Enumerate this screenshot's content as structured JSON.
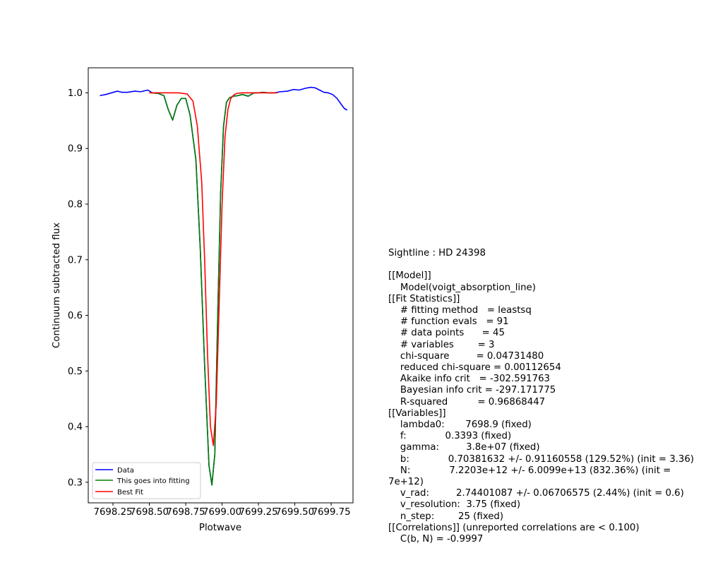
{
  "chart_data": {
    "type": "line",
    "xlabel": "Plotwave",
    "ylabel": "Continuum subtracted flux",
    "xlim": [
      7698.08,
      7699.9
    ],
    "ylim": [
      0.263,
      1.045
    ],
    "xticks": [
      7698.25,
      7698.5,
      7698.75,
      7699.0,
      7699.25,
      7699.5,
      7699.75
    ],
    "xtick_labels": [
      "7698.25",
      "7698.50",
      "7698.75",
      "7699.00",
      "7699.25",
      "7699.50",
      "7699.75"
    ],
    "yticks": [
      0.3,
      0.4,
      0.5,
      0.6,
      0.7,
      0.8,
      0.9,
      1.0
    ],
    "ytick_labels": [
      "0.3",
      "0.4",
      "0.5",
      "0.6",
      "0.7",
      "0.8",
      "0.9",
      "1.0"
    ],
    "grid": false,
    "legend_position": "lower-left",
    "series": [
      {
        "name": "Data",
        "color": "#0000ff",
        "x": [
          7698.16,
          7698.2,
          7698.24,
          7698.28,
          7698.31,
          7698.35,
          7698.4,
          7698.44,
          7698.49,
          7698.52,
          7698.56,
          7698.6,
          7698.63,
          7698.66,
          7698.69,
          7698.72,
          7698.75,
          7698.78,
          7698.82,
          7698.85,
          7698.88,
          7698.91,
          7698.93,
          7698.95,
          7698.97,
          7698.99,
          7699.01,
          7699.03,
          7699.05,
          7699.08,
          7699.11,
          7699.14,
          7699.18,
          7699.22,
          7699.25,
          7699.28,
          7699.32,
          7699.36,
          7699.4,
          7699.45,
          7699.49,
          7699.53,
          7699.57,
          7699.61,
          7699.64,
          7699.67,
          7699.7,
          7699.73,
          7699.76,
          7699.79,
          7699.82,
          7699.84,
          7699.86
        ],
        "y": [
          0.995,
          0.997,
          1.0,
          1.003,
          1.001,
          1.001,
          1.003,
          1.002,
          1.005,
          1.0,
          0.999,
          0.995,
          0.97,
          0.951,
          0.978,
          0.99,
          0.99,
          0.96,
          0.88,
          0.72,
          0.51,
          0.33,
          0.295,
          0.35,
          0.6,
          0.82,
          0.94,
          0.983,
          0.991,
          0.994,
          0.995,
          0.997,
          0.994,
          1.0,
          1.0,
          1.001,
          1.0,
          1.0,
          1.002,
          1.003,
          1.006,
          1.005,
          1.008,
          1.01,
          1.009,
          1.005,
          1.001,
          1.0,
          0.997,
          0.99,
          0.979,
          0.972,
          0.969
        ]
      },
      {
        "name": "This goes into fitting",
        "color": "#008000",
        "x": [
          7698.52,
          7698.56,
          7698.6,
          7698.63,
          7698.66,
          7698.69,
          7698.72,
          7698.75,
          7698.78,
          7698.82,
          7698.85,
          7698.88,
          7698.91,
          7698.93,
          7698.95,
          7698.97,
          7698.99,
          7699.01,
          7699.03,
          7699.05,
          7699.08,
          7699.11,
          7699.14,
          7699.18,
          7699.22,
          7699.25,
          7699.28,
          7699.32,
          7699.36
        ],
        "y": [
          1.0,
          0.999,
          0.995,
          0.97,
          0.951,
          0.978,
          0.99,
          0.99,
          0.96,
          0.88,
          0.72,
          0.51,
          0.33,
          0.295,
          0.35,
          0.6,
          0.82,
          0.94,
          0.983,
          0.991,
          0.994,
          0.995,
          0.997,
          0.994,
          1.0,
          1.0,
          1.001,
          1.0,
          1.0
        ]
      },
      {
        "name": "Best Fit",
        "color": "#ff0000",
        "x": [
          7698.5,
          7698.6,
          7698.7,
          7698.76,
          7698.8,
          7698.83,
          7698.86,
          7698.88,
          7698.9,
          7698.92,
          7698.94,
          7698.96,
          7698.98,
          7699.0,
          7699.02,
          7699.04,
          7699.06,
          7699.08,
          7699.1,
          7699.14,
          7699.2,
          7699.3,
          7699.38
        ],
        "y": [
          1.0,
          1.0,
          1.0,
          0.998,
          0.985,
          0.94,
          0.84,
          0.7,
          0.53,
          0.4,
          0.366,
          0.44,
          0.62,
          0.8,
          0.92,
          0.97,
          0.99,
          0.996,
          0.999,
          1.0,
          1.0,
          1.0,
          1.0
        ]
      }
    ]
  },
  "fit_report": {
    "sightline": "Sightline : HD 24398",
    "model_header": "[[Model]]",
    "model_name": "    Model(voigt_absorption_line)",
    "fit_statistics_header": "[[Fit Statistics]]",
    "fitting_method": "    # fitting method   = leastsq",
    "function_evals": "    # function evals   = 91",
    "data_points": "    # data points      = 45",
    "variables_count": "    # variables        = 3",
    "chi_square": "    chi-square         = 0.04731480",
    "reduced_chi_square": "    reduced chi-square = 0.00112654",
    "akaike": "    Akaike info crit   = -302.591763",
    "bayesian": "    Bayesian info crit = -297.171775",
    "r_squared": "    R-squared          = 0.96868447",
    "variables_header": "[[Variables]]",
    "lambda0": "    lambda0:       7698.9 (fixed)",
    "f": "    f:             0.3393 (fixed)",
    "gamma": "    gamma:         3.8e+07 (fixed)",
    "b": "    b:             0.70381632 +/- 0.91160558 (129.52%) (init = 3.36)",
    "N": "    N:             7.2203e+12 +/- 6.0099e+13 (832.36%) (init = 7e+12)",
    "v_rad": "    v_rad:         2.74401087 +/- 0.06706575 (2.44%) (init = 0.6)",
    "v_resolution": "    v_resolution:  3.75 (fixed)",
    "n_step": "    n_step:        25 (fixed)",
    "correlations_header": "[[Correlations]] (unreported correlations are < 0.100)",
    "corr_bN": "    C(b, N) = -0.9997"
  }
}
